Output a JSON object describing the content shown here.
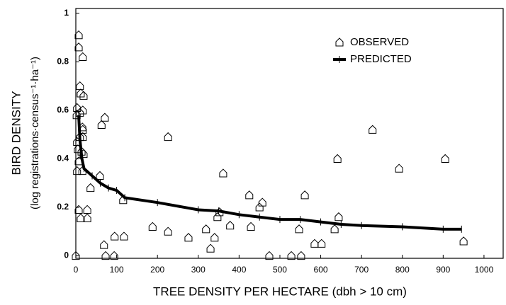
{
  "chart_data": {
    "type": "scatter",
    "xlabel": "TREE DENSITY PER HECTARE (dbh > 10 cm)",
    "ylabel": "BIRD DENSITY",
    "ylabel2": "(log registrations·census⁻¹·ha⁻¹)",
    "xlim": [
      0,
      1047
    ],
    "ylim": [
      -0.01,
      1.02
    ],
    "xticks": [
      0,
      100,
      200,
      300,
      400,
      500,
      600,
      700,
      800,
      900,
      1000
    ],
    "yticks": [
      0,
      0.2,
      0.4,
      0.6,
      0.8,
      1
    ],
    "legend": "top-right",
    "series": [
      {
        "name": "OBSERVED",
        "color": "#000000",
        "marker": "pentagon",
        "x": [
          0,
          7,
          7,
          17,
          10,
          12,
          19,
          3,
          10,
          17,
          2,
          16,
          17,
          10,
          17,
          3,
          5,
          14,
          7,
          19,
          3,
          16,
          36,
          7,
          28,
          12,
          28,
          63,
          71,
          59,
          69,
          73,
          95,
          94,
          116,
          118,
          188,
          226,
          226,
          276,
          319,
          330,
          340,
          347,
          352,
          361,
          378,
          425,
          429,
          450,
          457,
          474,
          528,
          547,
          552,
          561,
          585,
          602,
          634,
          641,
          644,
          727,
          792,
          905,
          950
        ],
        "values": [
          0,
          0.91,
          0.86,
          0.82,
          0.7,
          0.67,
          0.66,
          0.61,
          0.59,
          0.6,
          0.58,
          0.53,
          0.52,
          0.49,
          0.49,
          0.47,
          0.44,
          0.43,
          0.39,
          0.42,
          0.35,
          0.35,
          0.28,
          0.19,
          0.19,
          0.155,
          0.155,
          0.54,
          0.57,
          0.33,
          0.045,
          0,
          0.08,
          0,
          0.23,
          0.08,
          0.12,
          0.49,
          0.1,
          0.075,
          0.11,
          0.03,
          0.075,
          0.16,
          0.18,
          0.34,
          0.125,
          0.25,
          0.12,
          0.2,
          0.22,
          0,
          0,
          0.11,
          0,
          0.25,
          0.05,
          0.05,
          0.11,
          0.4,
          0.16,
          0.52,
          0.36,
          0.4,
          0.06
        ]
      },
      {
        "name": "PREDICTED",
        "color": "#000000",
        "marker": "line",
        "x": [
          7,
          10,
          15,
          20,
          40,
          60,
          80,
          100,
          120,
          200,
          300,
          350,
          400,
          450,
          500,
          550,
          600,
          650,
          700,
          800,
          900,
          945
        ],
        "values": [
          0.58,
          0.48,
          0.4,
          0.36,
          0.33,
          0.3,
          0.28,
          0.27,
          0.24,
          0.22,
          0.19,
          0.185,
          0.17,
          0.16,
          0.15,
          0.15,
          0.14,
          0.13,
          0.125,
          0.12,
          0.11,
          0.11
        ]
      }
    ]
  }
}
